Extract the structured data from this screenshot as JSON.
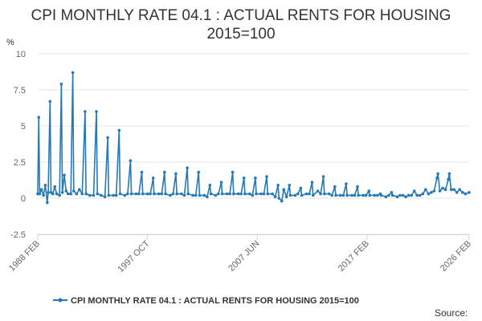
{
  "chart_data": {
    "type": "line",
    "title": "CPI MONTHLY RATE 04.1 : ACTUAL RENTS FOR HOUSING 2015=100",
    "ylabel": "%",
    "ylim": [
      -2.5,
      10
    ],
    "yticks": [
      -2.5,
      0,
      2.5,
      5,
      7.5,
      10
    ],
    "yticklabels": [
      "-2.5",
      "0",
      "2.5",
      "5",
      "7.5",
      "10"
    ],
    "xrange": [
      "1988-02",
      "2026-02"
    ],
    "xticks": [
      "1988 FEB",
      "1997 OCT",
      "2007 JUN",
      "2017 FEB",
      "2026 FEB"
    ],
    "grid": "horizontal",
    "legend_position": "bottom",
    "color": "#2479b6",
    "series": [
      {
        "name": "CPI MONTHLY RATE 04.1 : ACTUAL RENTS FOR HOUSING 2015=100",
        "points": [
          [
            "1988-02",
            0.3
          ],
          [
            "1988-03",
            5.6
          ],
          [
            "1988-04",
            0.3
          ],
          [
            "1988-06",
            0.6
          ],
          [
            "1988-08",
            0.2
          ],
          [
            "1988-10",
            0.9
          ],
          [
            "1988-12",
            -0.3
          ],
          [
            "1989-01",
            0.4
          ],
          [
            "1989-03",
            6.7
          ],
          [
            "1989-04",
            0.4
          ],
          [
            "1989-06",
            0.3
          ],
          [
            "1989-08",
            0.8
          ],
          [
            "1989-10",
            0.3
          ],
          [
            "1990-01",
            0.2
          ],
          [
            "1990-03",
            7.9
          ],
          [
            "1990-04",
            0.4
          ],
          [
            "1990-06",
            1.6
          ],
          [
            "1990-08",
            0.5
          ],
          [
            "1990-10",
            0.3
          ],
          [
            "1991-01",
            0.3
          ],
          [
            "1991-03",
            8.7
          ],
          [
            "1991-04",
            0.5
          ],
          [
            "1991-07",
            0.3
          ],
          [
            "1991-10",
            0.6
          ],
          [
            "1992-01",
            0.3
          ],
          [
            "1992-04",
            6.0
          ],
          [
            "1992-05",
            0.3
          ],
          [
            "1992-09",
            0.2
          ],
          [
            "1993-01",
            0.2
          ],
          [
            "1993-04",
            6.0
          ],
          [
            "1993-05",
            0.3
          ],
          [
            "1993-09",
            0.2
          ],
          [
            "1994-01",
            0.1
          ],
          [
            "1994-04",
            4.2
          ],
          [
            "1994-05",
            0.2
          ],
          [
            "1994-10",
            0.2
          ],
          [
            "1995-01",
            0.2
          ],
          [
            "1995-04",
            4.7
          ],
          [
            "1995-05",
            0.3
          ],
          [
            "1995-10",
            0.2
          ],
          [
            "1996-01",
            0.3
          ],
          [
            "1996-04",
            2.6
          ],
          [
            "1996-05",
            0.3
          ],
          [
            "1996-10",
            0.3
          ],
          [
            "1997-01",
            0.3
          ],
          [
            "1997-04",
            1.8
          ],
          [
            "1997-05",
            0.3
          ],
          [
            "1997-10",
            0.3
          ],
          [
            "1998-01",
            0.3
          ],
          [
            "1998-04",
            1.4
          ],
          [
            "1998-05",
            0.3
          ],
          [
            "1998-10",
            0.3
          ],
          [
            "1999-01",
            0.3
          ],
          [
            "1999-04",
            1.8
          ],
          [
            "1999-05",
            0.3
          ],
          [
            "1999-10",
            0.2
          ],
          [
            "2000-01",
            0.3
          ],
          [
            "2000-04",
            1.7
          ],
          [
            "2000-05",
            0.3
          ],
          [
            "2000-10",
            0.3
          ],
          [
            "2001-01",
            0.2
          ],
          [
            "2001-04",
            2.1
          ],
          [
            "2001-05",
            0.3
          ],
          [
            "2001-10",
            0.2
          ],
          [
            "2002-01",
            0.2
          ],
          [
            "2002-04",
            1.8
          ],
          [
            "2002-05",
            0.2
          ],
          [
            "2002-10",
            0.2
          ],
          [
            "2003-01",
            0.1
          ],
          [
            "2003-04",
            0.9
          ],
          [
            "2003-05",
            0.3
          ],
          [
            "2003-10",
            0.2
          ],
          [
            "2004-01",
            0.3
          ],
          [
            "2004-04",
            1.1
          ],
          [
            "2004-05",
            0.3
          ],
          [
            "2004-10",
            0.3
          ],
          [
            "2005-01",
            0.3
          ],
          [
            "2005-04",
            1.8
          ],
          [
            "2005-05",
            0.3
          ],
          [
            "2005-10",
            0.3
          ],
          [
            "2006-01",
            0.3
          ],
          [
            "2006-04",
            1.4
          ],
          [
            "2006-05",
            0.3
          ],
          [
            "2006-10",
            0.3
          ],
          [
            "2007-01",
            0.2
          ],
          [
            "2007-04",
            1.4
          ],
          [
            "2007-05",
            0.3
          ],
          [
            "2007-10",
            0.3
          ],
          [
            "2008-01",
            0.3
          ],
          [
            "2008-04",
            1.5
          ],
          [
            "2008-05",
            0.3
          ],
          [
            "2008-10",
            0.3
          ],
          [
            "2009-01",
            0.1
          ],
          [
            "2009-04",
            0.9
          ],
          [
            "2009-05",
            0.0
          ],
          [
            "2009-08",
            -0.2
          ],
          [
            "2009-10",
            0.6
          ],
          [
            "2010-01",
            0.1
          ],
          [
            "2010-04",
            0.9
          ],
          [
            "2010-05",
            0.2
          ],
          [
            "2010-10",
            0.2
          ],
          [
            "2011-01",
            0.3
          ],
          [
            "2011-04",
            0.7
          ],
          [
            "2011-05",
            0.2
          ],
          [
            "2011-10",
            0.3
          ],
          [
            "2012-01",
            0.3
          ],
          [
            "2012-04",
            1.1
          ],
          [
            "2012-05",
            0.2
          ],
          [
            "2012-10",
            0.5
          ],
          [
            "2013-01",
            0.3
          ],
          [
            "2013-04",
            1.5
          ],
          [
            "2013-05",
            0.3
          ],
          [
            "2013-10",
            0.3
          ],
          [
            "2014-01",
            0.2
          ],
          [
            "2014-04",
            0.8
          ],
          [
            "2014-05",
            0.2
          ],
          [
            "2014-10",
            0.2
          ],
          [
            "2015-01",
            0.2
          ],
          [
            "2015-04",
            1.0
          ],
          [
            "2015-05",
            0.2
          ],
          [
            "2015-10",
            0.2
          ],
          [
            "2016-01",
            0.2
          ],
          [
            "2016-04",
            0.8
          ],
          [
            "2016-05",
            0.2
          ],
          [
            "2016-10",
            0.2
          ],
          [
            "2017-01",
            0.2
          ],
          [
            "2017-04",
            0.5
          ],
          [
            "2017-05",
            0.2
          ],
          [
            "2017-10",
            0.2
          ],
          [
            "2018-01",
            0.2
          ],
          [
            "2018-04",
            0.3
          ],
          [
            "2018-05",
            0.2
          ],
          [
            "2018-10",
            0.1
          ],
          [
            "2019-01",
            0.2
          ],
          [
            "2019-04",
            0.4
          ],
          [
            "2019-05",
            0.2
          ],
          [
            "2019-10",
            0.1
          ],
          [
            "2020-01",
            0.2
          ],
          [
            "2020-04",
            0.2
          ],
          [
            "2020-07",
            0.1
          ],
          [
            "2020-10",
            0.2
          ],
          [
            "2021-01",
            0.2
          ],
          [
            "2021-04",
            0.5
          ],
          [
            "2021-07",
            0.2
          ],
          [
            "2021-10",
            0.2
          ],
          [
            "2022-01",
            0.3
          ],
          [
            "2022-04",
            0.6
          ],
          [
            "2022-07",
            0.3
          ],
          [
            "2022-10",
            0.4
          ],
          [
            "2023-01",
            0.5
          ],
          [
            "2023-04",
            1.4
          ],
          [
            "2023-05",
            1.7
          ],
          [
            "2023-07",
            0.5
          ],
          [
            "2023-10",
            0.7
          ],
          [
            "2024-01",
            0.6
          ],
          [
            "2024-04",
            1.3
          ],
          [
            "2024-05",
            1.7
          ],
          [
            "2024-07",
            0.6
          ],
          [
            "2024-10",
            0.6
          ],
          [
            "2025-01",
            0.4
          ],
          [
            "2025-04",
            0.6
          ],
          [
            "2025-07",
            0.4
          ],
          [
            "2025-10",
            0.3
          ],
          [
            "2026-02",
            0.4
          ]
        ]
      }
    ]
  },
  "legend": {
    "label": "CPI MONTHLY RATE 04.1 : ACTUAL RENTS FOR HOUSING 2015=100"
  },
  "footer": {
    "source_label": "Source:"
  }
}
